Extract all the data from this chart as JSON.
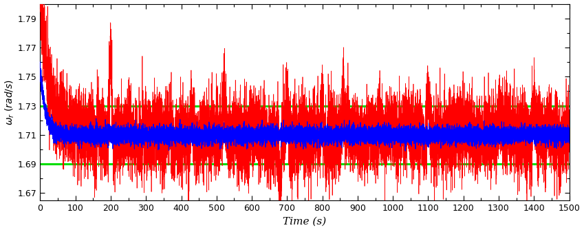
{
  "title": "",
  "xlabel": "Time (s)",
  "ylabel": "$\\omega_r \\ (rad/s)$",
  "xlim": [
    0,
    1500
  ],
  "ylim": [
    1.665,
    1.8
  ],
  "yticks": [
    1.67,
    1.69,
    1.71,
    1.73,
    1.75,
    1.77,
    1.79
  ],
  "xticks": [
    0,
    100,
    200,
    300,
    400,
    500,
    600,
    700,
    800,
    900,
    1000,
    1100,
    1200,
    1300,
    1400,
    1500
  ],
  "xtick_labels": [
    "0",
    "100",
    "200",
    "300",
    "400",
    "500",
    "600",
    "700",
    "800",
    "900",
    "1000",
    "1100",
    "1200",
    "1300",
    "1400",
    "1500"
  ],
  "reference": 1.71,
  "upper_bound": 1.73,
  "lower_bound": 1.69,
  "green_color": "#00dd00",
  "blue_color": "#0000ff",
  "red_color": "#ff0000",
  "green_linewidth": 2.2,
  "blue_linewidth": 0.8,
  "red_linewidth": 0.5,
  "noise_seed_red": 42,
  "noise_seed_blue": 7,
  "n_points": 15000,
  "figsize": [
    8.49,
    3.34
  ],
  "dpi": 100,
  "red_initial": 1.805,
  "red_decay_tau": 25,
  "red_noise_std": 0.013,
  "blue_initial": 1.755,
  "blue_decay_tau": 15,
  "blue_noise_std": 0.003
}
